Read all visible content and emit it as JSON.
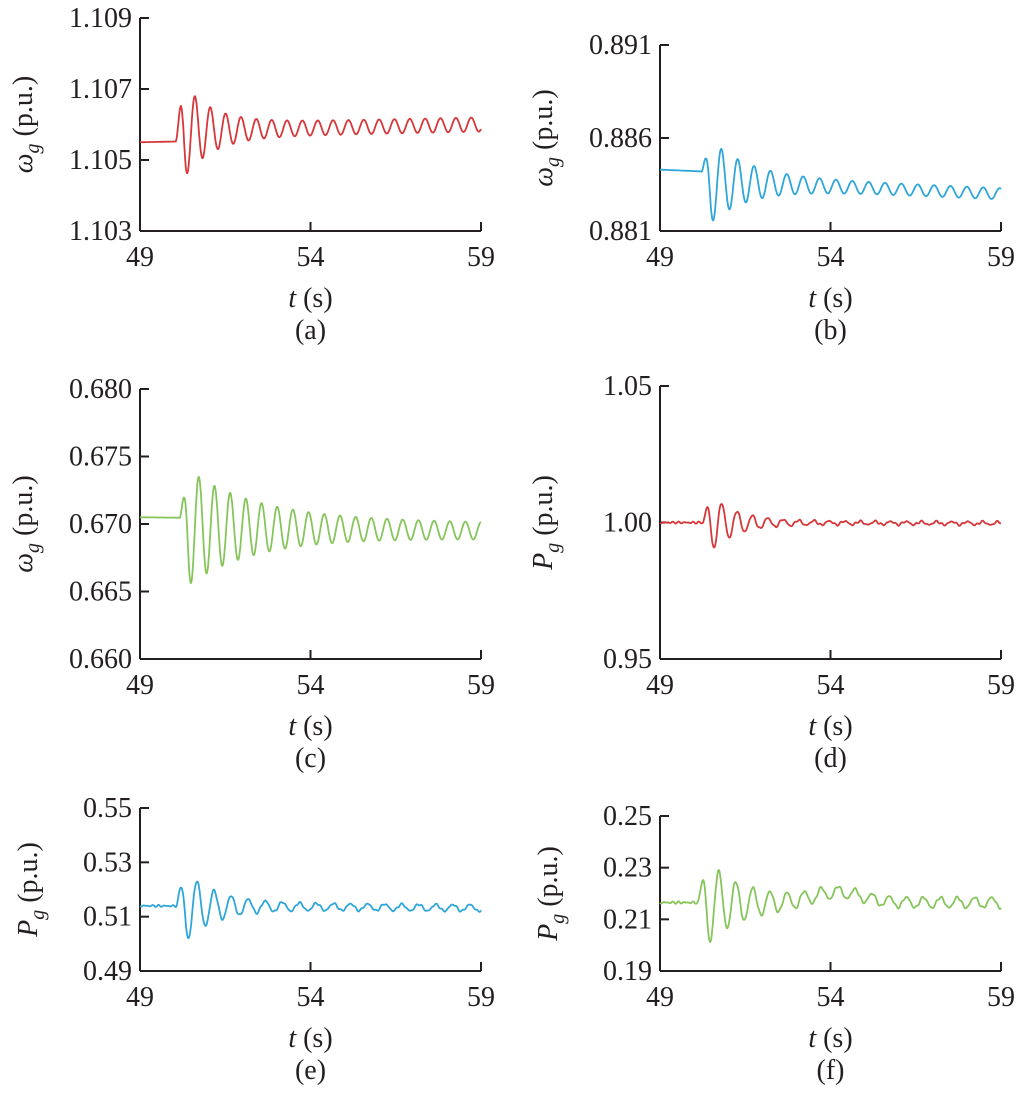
{
  "chart_data": [
    {
      "id": "a",
      "type": "line",
      "caption": "(a)",
      "ylabel": {
        "sym": "ω",
        "sub": "g",
        "unit": "(p.u.)"
      },
      "xlabel": {
        "sym": "t",
        "unit": "(s)"
      },
      "xlim": [
        49,
        59
      ],
      "ylim": [
        1.103,
        1.109
      ],
      "xticks": [
        49,
        54,
        59
      ],
      "yticks": [
        1.103,
        1.105,
        1.107,
        1.109
      ],
      "ytick_labels": [
        "1.103",
        "1.105",
        "1.107",
        "1.109"
      ],
      "grid": false,
      "color": "#d6373a",
      "series": [
        {
          "x_range": [
            49,
            59
          ],
          "base": 1.1055,
          "drift": 0.0002,
          "onset": 50.05,
          "pre_step": 0.0003,
          "amp": 0.0015,
          "decay": 1.2,
          "period": 0.45,
          "floor_amp": 0.0002,
          "end_noise": 0
        }
      ]
    },
    {
      "id": "b",
      "type": "line",
      "caption": "(b)",
      "ylabel": {
        "sym": "ω",
        "sub": "g",
        "unit": "(p.u.)"
      },
      "xlabel": {
        "sym": "t",
        "unit": "(s)"
      },
      "xlim": [
        49,
        59
      ],
      "ylim": [
        0.881,
        0.891
      ],
      "xticks": [
        49,
        54,
        59
      ],
      "yticks": [
        0.881,
        0.886,
        0.891
      ],
      "ytick_labels": [
        "0.881",
        "0.886",
        "0.891"
      ],
      "grid": false,
      "color": "#2ea6d9",
      "series": [
        {
          "x_range": [
            49,
            59
          ],
          "base": 0.8843,
          "drift": -0.0008,
          "onset": 50.2,
          "pre_step": -0.0005,
          "amp": 0.0025,
          "decay": 0.9,
          "period": 0.48,
          "floor_amp": 0.0003,
          "end_noise": 0
        }
      ]
    },
    {
      "id": "c",
      "type": "line",
      "caption": "(c)",
      "ylabel": {
        "sym": "ω",
        "sub": "g",
        "unit": "(p.u.)"
      },
      "xlabel": {
        "sym": "t",
        "unit": "(s)"
      },
      "xlim": [
        49,
        59
      ],
      "ylim": [
        0.66,
        0.68
      ],
      "xticks": [
        49,
        54,
        59
      ],
      "yticks": [
        0.66,
        0.665,
        0.67,
        0.675,
        0.68
      ],
      "ytick_labels": [
        "0.660",
        "0.665",
        "0.670",
        "0.675",
        "0.680"
      ],
      "grid": false,
      "color": "#86c55c",
      "series": [
        {
          "x_range": [
            49,
            59
          ],
          "base": 0.6705,
          "drift": -0.0003,
          "onset": 50.15,
          "pre_step": -0.0007,
          "amp": 0.0042,
          "decay": 0.5,
          "period": 0.46,
          "floor_amp": 0.0006,
          "end_noise": 0
        }
      ]
    },
    {
      "id": "d",
      "type": "line",
      "caption": "(d)",
      "ylabel": {
        "sym": "P",
        "sub": "g",
        "unit": "(p.u.)"
      },
      "xlabel": {
        "sym": "t",
        "unit": "(s)"
      },
      "xlim": [
        49,
        59
      ],
      "ylim": [
        0.95,
        1.05
      ],
      "xticks": [
        49,
        54,
        59
      ],
      "yticks": [
        0.95,
        1.0,
        1.05
      ],
      "ytick_labels": [
        "0.95",
        "1.00",
        "1.05"
      ],
      "grid": false,
      "color": "#d6373a",
      "series": [
        {
          "x_range": [
            49,
            59
          ],
          "base": 1.0,
          "drift": -0.0003,
          "onset": 50.25,
          "pre_step": 0,
          "amp": 0.0135,
          "decay": 1.3,
          "period": 0.45,
          "floor_amp": 0.0006,
          "end_noise": 0.0004
        }
      ]
    },
    {
      "id": "e",
      "type": "line",
      "caption": "(e)",
      "ylabel": {
        "sym": "P",
        "sub": "g",
        "unit": "(p.u.)"
      },
      "xlabel": {
        "sym": "t",
        "unit": "(s)"
      },
      "xlim": [
        49,
        59
      ],
      "ylim": [
        0.49,
        0.55
      ],
      "xticks": [
        49,
        54,
        59
      ],
      "yticks": [
        0.49,
        0.51,
        0.53,
        0.55
      ],
      "ytick_labels": [
        "0.49",
        "0.51",
        "0.53",
        "0.55"
      ],
      "grid": false,
      "color": "#2ea6d9",
      "series": [
        {
          "x_range": [
            49,
            59
          ],
          "base": 0.514,
          "drift": -0.0008,
          "onset": 50.05,
          "pre_step": 0,
          "amp": 0.016,
          "decay": 1.1,
          "period": 0.5,
          "floor_amp": 0.0012,
          "end_noise": 0.0004
        }
      ]
    },
    {
      "id": "f",
      "type": "line",
      "caption": "(f)",
      "ylabel": {
        "sym": "P",
        "sub": "g",
        "unit": "(p.u.)"
      },
      "xlabel": {
        "sym": "t",
        "unit": "(s)"
      },
      "xlim": [
        49,
        59
      ],
      "ylim": [
        0.19,
        0.25
      ],
      "xticks": [
        49,
        54,
        59
      ],
      "yticks": [
        0.19,
        0.21,
        0.23,
        0.25
      ],
      "ytick_labels": [
        "0.19",
        "0.21",
        "0.23",
        "0.25"
      ],
      "grid": false,
      "color": "#86c55c",
      "series": [
        {
          "x_range": [
            49,
            59
          ],
          "base": 0.2165,
          "drift": 0,
          "onset": 50.1,
          "pre_step": 0,
          "amp": 0.019,
          "decay": 1.0,
          "period": 0.5,
          "floor_amp": 0.002,
          "end_noise": 0.0005,
          "bump_center": 54.2,
          "bump_amp": 0.004,
          "bump_width": 1.0
        }
      ]
    }
  ]
}
